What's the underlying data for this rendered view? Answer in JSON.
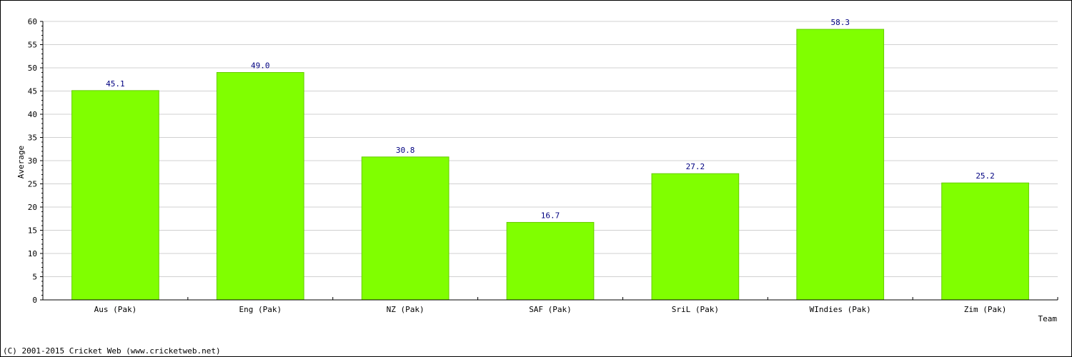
{
  "chart_data": {
    "type": "bar",
    "categories": [
      "Aus (Pak)",
      "Eng (Pak)",
      "NZ (Pak)",
      "SAF (Pak)",
      "SriL (Pak)",
      "WIndies (Pak)",
      "Zim (Pak)"
    ],
    "values": [
      45.1,
      49.0,
      30.8,
      16.7,
      27.2,
      58.3,
      25.2
    ],
    "value_labels": [
      "45.1",
      "49.0",
      "30.8",
      "16.7",
      "27.2",
      "58.3",
      "25.2"
    ],
    "title": "",
    "xlabel": "Team",
    "ylabel": "Average",
    "ylim": [
      0,
      60
    ],
    "y_ticks": [
      "0",
      "5",
      "10",
      "15",
      "20",
      "25",
      "30",
      "35",
      "40",
      "45",
      "50",
      "55",
      "60"
    ],
    "grid": true,
    "bar_color": "#80ff00",
    "bar_edge_color": "#66cc00",
    "label_color": "#000080",
    "grid_color": "#d0d0d0"
  },
  "footer": {
    "copyright": "(C) 2001-2015 Cricket Web (www.cricketweb.net)"
  }
}
